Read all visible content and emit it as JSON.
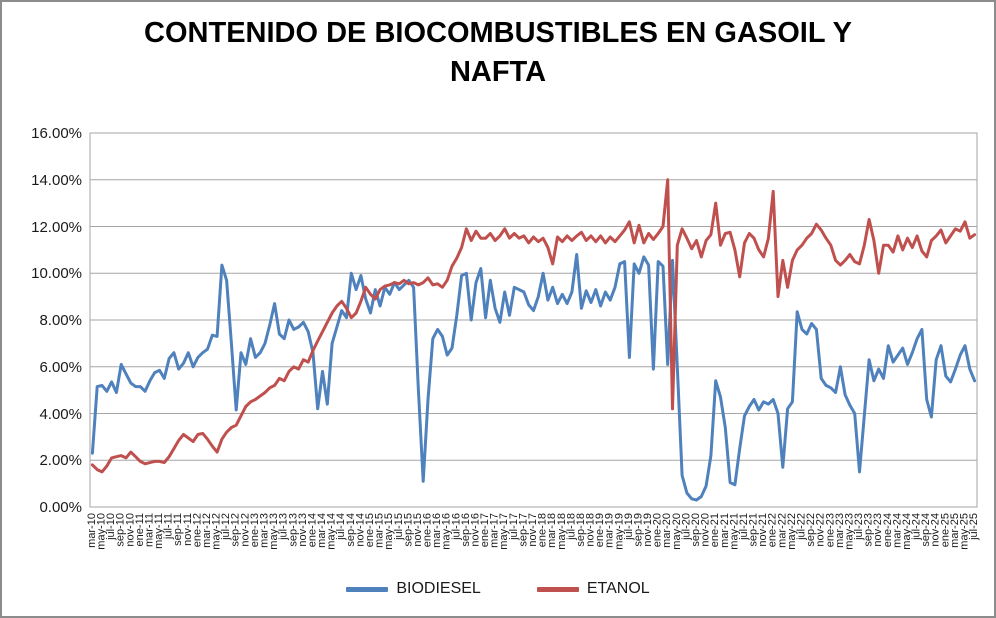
{
  "chart_data": {
    "type": "line",
    "title": "CONTENIDO DE BIOCOMBUSTIBLES EN GASOIL Y NAFTA",
    "grid": true,
    "legend_position": "bottom",
    "colors": {
      "grid": "#a6a6a6",
      "plot_border": "#a6a6a6",
      "frame_border": "#8c8c8c"
    },
    "y_axis": {
      "min": 0,
      "max": 16,
      "step": 2,
      "tick_labels": [
        "0.00%",
        "2.00%",
        "4.00%",
        "6.00%",
        "8.00%",
        "10.00%",
        "12.00%",
        "14.00%",
        "16.00%"
      ]
    },
    "x_axis": {
      "tick_labels": [
        "mar-10",
        "may-10",
        "jul-10",
        "sep-10",
        "nov-10",
        "ene-11",
        "mar-11",
        "may-11",
        "jul-11",
        "sep-11",
        "nov-11",
        "ene-12",
        "mar-12",
        "may-12",
        "jul-12",
        "sep-12",
        "nov-12",
        "ene-13",
        "mar-13",
        "may-13",
        "jul-13",
        "sep-13",
        "nov-13",
        "ene-14",
        "mar-14",
        "may-14",
        "jul-14",
        "sep-14",
        "nov-14",
        "ene-15",
        "mar-15",
        "may-15",
        "jul-15",
        "sep-15",
        "nov-15",
        "ene-16",
        "mar-16",
        "may-16",
        "jul-16",
        "sep-16",
        "nov-16",
        "ene-17",
        "mar-17",
        "may-17",
        "jul-17",
        "sep-17",
        "nov-17",
        "ene-18",
        "mar-18",
        "may-18",
        "jul-18",
        "sep-18",
        "nov-18",
        "ene-19",
        "mar-19",
        "may-19",
        "jul-19",
        "sep-19",
        "nov-19",
        "ene-20",
        "mar-20",
        "may-20",
        "jul-20",
        "sep-20",
        "nov-20",
        "ene-21",
        "mar-21",
        "may-21",
        "jul-21",
        "sep-21",
        "nov-21",
        "ene-22",
        "mar-22",
        "may-22",
        "jul-22",
        "sep-22",
        "nov-22",
        "ene-23",
        "mar-23",
        "may-23",
        "jul-23",
        "sep-23",
        "nov-23",
        "ene-24",
        "mar-24",
        "may-24",
        "jul-24",
        "sep-24",
        "nov-24",
        "ene-25",
        "mar-25",
        "may-25",
        "jul-25"
      ],
      "categories_start": "mar-10",
      "categories_end": "jul-25",
      "categories_frequency": "monthly"
    },
    "series": [
      {
        "name": "BIODIESEL",
        "color": "#4f81bd",
        "values": [
          2.3,
          5.15,
          5.2,
          4.95,
          5.35,
          4.9,
          6.1,
          5.7,
          5.3,
          5.15,
          5.15,
          4.95,
          5.4,
          5.75,
          5.85,
          5.5,
          6.35,
          6.6,
          5.9,
          6.15,
          6.6,
          6.0,
          6.4,
          6.6,
          6.75,
          7.35,
          7.3,
          10.35,
          9.7,
          7.0,
          4.15,
          6.6,
          6.1,
          7.2,
          6.4,
          6.6,
          7.0,
          7.8,
          8.7,
          7.4,
          7.2,
          8.0,
          7.6,
          7.7,
          7.9,
          7.5,
          6.6,
          4.2,
          5.8,
          4.4,
          7.0,
          7.7,
          8.4,
          8.1,
          10.0,
          9.3,
          9.9,
          8.9,
          8.3,
          9.3,
          8.6,
          9.4,
          9.1,
          9.6,
          9.3,
          9.5,
          9.7,
          9.4,
          5.0,
          1.1,
          4.6,
          7.2,
          7.6,
          7.3,
          6.5,
          6.8,
          8.2,
          9.9,
          10.0,
          8.0,
          9.6,
          10.2,
          8.1,
          9.7,
          8.5,
          7.9,
          9.2,
          8.2,
          9.4,
          9.3,
          9.2,
          8.65,
          8.4,
          9.0,
          10.0,
          8.85,
          9.4,
          8.7,
          9.1,
          8.7,
          9.2,
          10.8,
          8.5,
          9.25,
          8.75,
          9.3,
          8.6,
          9.2,
          8.85,
          9.4,
          10.4,
          10.5,
          6.4,
          10.4,
          10.0,
          10.7,
          10.35,
          5.9,
          10.5,
          10.3,
          6.1,
          10.55,
          6.0,
          1.35,
          0.6,
          0.35,
          0.3,
          0.45,
          0.9,
          2.2,
          5.4,
          4.7,
          3.4,
          1.05,
          0.95,
          2.5,
          3.9,
          4.3,
          4.6,
          4.15,
          4.5,
          4.4,
          4.6,
          4.0,
          1.7,
          4.2,
          4.5,
          8.35,
          7.6,
          7.4,
          7.85,
          7.6,
          5.5,
          5.2,
          5.1,
          4.9,
          6.0,
          4.8,
          4.35,
          4.0,
          1.5,
          3.9,
          6.3,
          5.4,
          5.9,
          5.5,
          6.9,
          6.2,
          6.5,
          6.8,
          6.1,
          6.6,
          7.2,
          7.6,
          4.6,
          3.85,
          6.3,
          6.9,
          5.6,
          5.35,
          5.9,
          6.5,
          6.9,
          5.9,
          5.4
        ]
      },
      {
        "name": "ETANOL",
        "color": "#c0504d",
        "values": [
          1.8,
          1.6,
          1.5,
          1.75,
          2.1,
          2.15,
          2.2,
          2.1,
          2.35,
          2.15,
          1.95,
          1.85,
          1.9,
          1.95,
          1.95,
          1.9,
          2.15,
          2.5,
          2.85,
          3.1,
          2.95,
          2.8,
          3.1,
          3.15,
          2.9,
          2.6,
          2.35,
          2.9,
          3.2,
          3.4,
          3.5,
          3.9,
          4.3,
          4.5,
          4.6,
          4.75,
          4.9,
          5.1,
          5.2,
          5.5,
          5.4,
          5.8,
          6.0,
          5.9,
          6.3,
          6.2,
          6.7,
          7.1,
          7.5,
          7.9,
          8.3,
          8.6,
          8.8,
          8.5,
          8.1,
          8.3,
          8.8,
          9.4,
          9.1,
          8.9,
          9.3,
          9.45,
          9.5,
          9.6,
          9.55,
          9.7,
          9.55,
          9.6,
          9.5,
          9.6,
          9.8,
          9.5,
          9.55,
          9.4,
          9.7,
          10.3,
          10.65,
          11.1,
          11.9,
          11.4,
          11.8,
          11.5,
          11.5,
          11.7,
          11.4,
          11.6,
          11.9,
          11.5,
          11.7,
          11.5,
          11.6,
          11.3,
          11.55,
          11.35,
          11.5,
          11.1,
          10.4,
          11.55,
          11.35,
          11.6,
          11.4,
          11.6,
          11.75,
          11.4,
          11.6,
          11.35,
          11.6,
          11.3,
          11.55,
          11.35,
          11.6,
          11.85,
          12.2,
          11.3,
          12.05,
          11.3,
          11.7,
          11.45,
          11.7,
          12.0,
          14.0,
          4.2,
          11.2,
          11.9,
          11.5,
          11.05,
          11.4,
          10.7,
          11.4,
          11.65,
          13.0,
          11.2,
          11.7,
          11.75,
          11.0,
          9.85,
          11.3,
          11.7,
          11.5,
          11.0,
          10.7,
          11.5,
          13.5,
          9.0,
          10.55,
          9.4,
          10.55,
          11.0,
          11.2,
          11.5,
          11.7,
          12.1,
          11.85,
          11.5,
          11.2,
          10.55,
          10.35,
          10.55,
          10.8,
          10.5,
          10.4,
          11.2,
          12.3,
          11.4,
          10.0,
          11.2,
          11.2,
          10.9,
          11.6,
          11.0,
          11.5,
          11.1,
          11.6,
          10.95,
          10.7,
          11.4,
          11.6,
          11.85,
          11.3,
          11.6,
          11.9,
          11.8,
          12.2,
          11.5,
          11.65
        ]
      }
    ]
  }
}
